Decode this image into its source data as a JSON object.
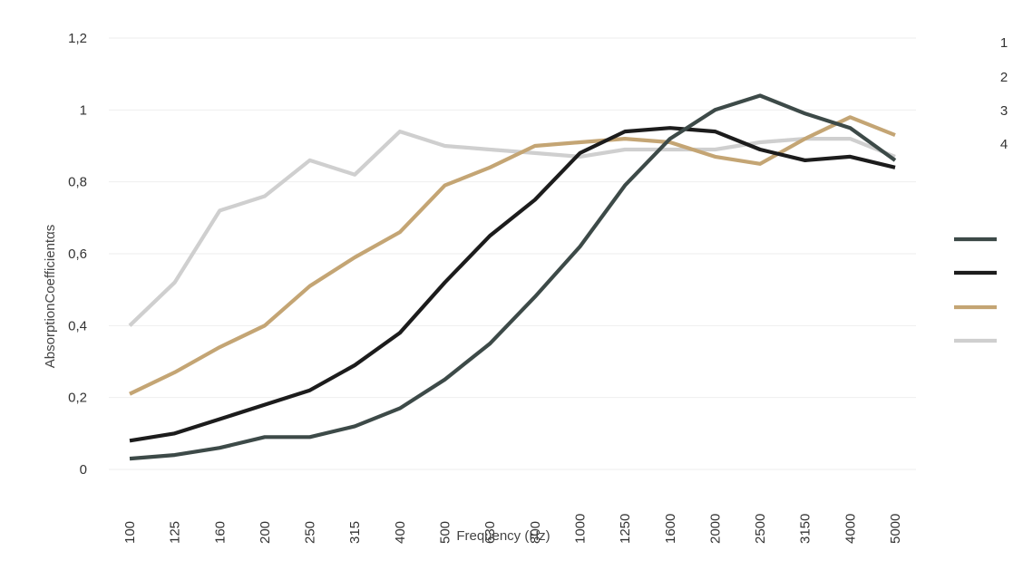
{
  "chart_data": {
    "type": "line",
    "title": "",
    "xlabel": "Frequency (Hz)",
    "ylabel": "AbsorptionCoefficientαs",
    "categories": [
      "100",
      "125",
      "160",
      "200",
      "250",
      "315",
      "400",
      "500",
      "630",
      "800",
      "1000",
      "1250",
      "1600",
      "2000",
      "2500",
      "3150",
      "4000",
      "5000"
    ],
    "ylim": [
      0,
      1.2
    ],
    "yticks": [
      0,
      0.2,
      0.4,
      0.6,
      0.8,
      1,
      1.2
    ],
    "ytick_labels": [
      "0",
      "0,2",
      "0,4",
      "0,6",
      "0,8",
      "1",
      "1,2"
    ],
    "grid": true,
    "legend_position": "right",
    "legend_numbers": [
      "1",
      "2",
      "3",
      "4"
    ],
    "series": [
      {
        "color": "#3d4a48",
        "values": [
          0.03,
          0.04,
          0.06,
          0.09,
          0.09,
          0.12,
          0.17,
          0.25,
          0.35,
          0.48,
          0.62,
          0.79,
          0.92,
          1.0,
          1.04,
          0.99,
          0.95,
          0.86
        ]
      },
      {
        "color": "#1c1c1c",
        "values": [
          0.08,
          0.1,
          0.14,
          0.18,
          0.22,
          0.29,
          0.38,
          0.52,
          0.65,
          0.75,
          0.88,
          0.94,
          0.95,
          0.94,
          0.89,
          0.86,
          0.87,
          0.84
        ]
      },
      {
        "color": "#c4a574",
        "values": [
          0.21,
          0.27,
          0.34,
          0.4,
          0.51,
          0.59,
          0.66,
          0.79,
          0.84,
          0.9,
          0.91,
          0.92,
          0.91,
          0.87,
          0.85,
          0.92,
          0.98,
          0.93
        ]
      },
      {
        "color": "#cfcfcf",
        "values": [
          0.4,
          0.52,
          0.72,
          0.76,
          0.86,
          0.82,
          0.94,
          0.9,
          0.89,
          0.88,
          0.87,
          0.89,
          0.89,
          0.89,
          0.91,
          0.92,
          0.92,
          0.87
        ]
      }
    ]
  }
}
